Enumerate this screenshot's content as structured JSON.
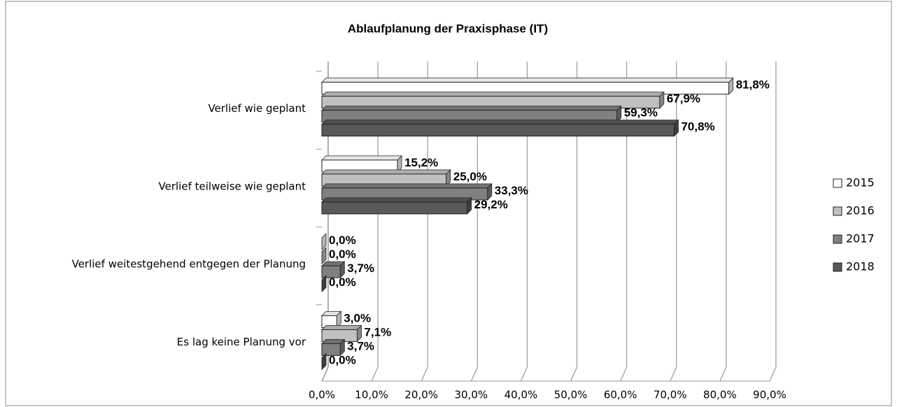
{
  "chart_data": {
    "type": "bar",
    "orientation": "horizontal",
    "title": "Ablaufplanung der Praxisphase (IT)",
    "categories": [
      "Verlief wie geplant",
      "Verlief teilweise wie geplant",
      "Verlief weitestgehend entgegen der Planung",
      "Es lag keine Planung vor"
    ],
    "series": [
      {
        "name": "2015",
        "color": "#ffffff",
        "values": [
          81.8,
          15.2,
          0.0,
          3.0
        ],
        "value_labels": [
          "81,8%",
          "15,2%",
          "0,0%",
          "3,0%"
        ]
      },
      {
        "name": "2016",
        "color": "#c0c0c0",
        "values": [
          67.9,
          25.0,
          0.0,
          7.1
        ],
        "value_labels": [
          "67,9%",
          "25,0%",
          "0,0%",
          "7,1%"
        ]
      },
      {
        "name": "2017",
        "color": "#808080",
        "values": [
          59.3,
          33.3,
          3.7,
          3.7
        ],
        "value_labels": [
          "59,3%",
          "33,3%",
          "3,7%",
          "3,7%"
        ]
      },
      {
        "name": "2018",
        "color": "#595959",
        "values": [
          70.8,
          29.2,
          0.0,
          0.0
        ],
        "value_labels": [
          "70,8%",
          "29,2%",
          "0,0%",
          "0,0%"
        ]
      }
    ],
    "xlim": [
      0,
      90
    ],
    "xticks": [
      {
        "value": 0,
        "label": "0,0%"
      },
      {
        "value": 10,
        "label": "10,0%"
      },
      {
        "value": 20,
        "label": "20,0%"
      },
      {
        "value": 30,
        "label": "30,0%"
      },
      {
        "value": 40,
        "label": "40,0%"
      },
      {
        "value": 50,
        "label": "50,0%"
      },
      {
        "value": 60,
        "label": "60,0%"
      },
      {
        "value": 70,
        "label": "70,0%"
      },
      {
        "value": 80,
        "label": "80,0%"
      },
      {
        "value": 90,
        "label": "90,0%"
      }
    ],
    "grid": true,
    "legend": "right"
  }
}
